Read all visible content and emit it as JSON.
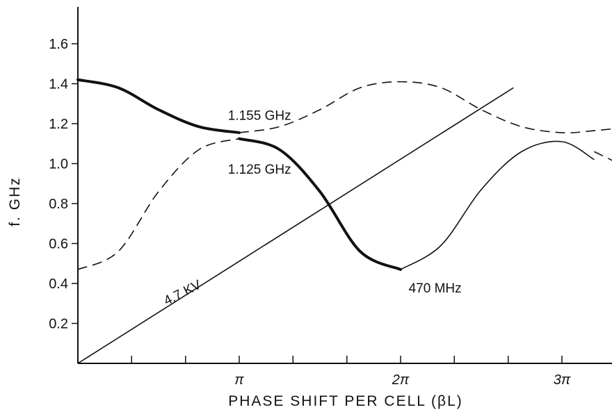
{
  "chart_data": {
    "type": "line",
    "xlabel": "PHASE SHIFT PER CELL (βL)",
    "ylabel": "f. GHz",
    "xlim": [
      0,
      3.5
    ],
    "ylim": [
      0,
      1.75
    ],
    "x_unit": "π",
    "x_tick_values": [
      1,
      2,
      3
    ],
    "x_tick_labels": [
      "π",
      "2π",
      "3π"
    ],
    "x_minor_ticks": [
      0.333,
      0.667,
      1.333,
      1.667,
      2.333,
      2.667
    ],
    "y_ticks": [
      0.2,
      0.4,
      0.6,
      0.8,
      1.0,
      1.2,
      1.4,
      1.6
    ],
    "y_tick_labels": [
      "0.2",
      "0.4",
      "0.6",
      "0.8",
      "1.0",
      "1.2",
      "1.4",
      "1.6"
    ],
    "grid": false,
    "legend": "none",
    "series": [
      {
        "style": "thick-solid",
        "x": [
          0,
          0.25,
          0.5,
          0.75,
          1.0
        ],
        "y": [
          1.42,
          1.38,
          1.27,
          1.185,
          1.155
        ]
      },
      {
        "style": "thick-solid",
        "x": [
          1.0,
          1.25,
          1.5,
          1.75,
          2.0
        ],
        "y": [
          1.125,
          1.07,
          0.86,
          0.56,
          0.47
        ]
      },
      {
        "style": "thin-solid",
        "x": [
          2.0,
          2.25,
          2.5,
          2.75,
          3.0,
          3.2
        ],
        "y": [
          0.47,
          0.59,
          0.87,
          1.06,
          1.11,
          1.02
        ]
      },
      {
        "style": "thin-solid",
        "x": [
          0,
          2.7
        ],
        "y": [
          0,
          1.38
        ]
      },
      {
        "style": "dashed",
        "x": [
          1.0,
          1.25,
          1.5,
          1.75,
          2.0,
          2.25,
          2.5,
          2.75,
          3.0,
          3.2,
          3.5
        ],
        "y": [
          1.155,
          1.185,
          1.27,
          1.38,
          1.41,
          1.38,
          1.27,
          1.185,
          1.155,
          1.165,
          1.19
        ]
      },
      {
        "style": "dashed",
        "x": [
          0,
          0.25,
          0.5,
          0.75,
          1.0
        ],
        "y": [
          0.47,
          0.56,
          0.86,
          1.07,
          1.125
        ]
      },
      {
        "style": "dashed",
        "x": [
          3.2,
          3.35,
          3.5
        ],
        "y": [
          1.06,
          1.0,
          0.93
        ]
      }
    ],
    "annotations": [
      {
        "text": "1.155 GHz",
        "x": 0.93,
        "y": 1.22,
        "angle": 0
      },
      {
        "text": "1.125 GHz",
        "x": 0.93,
        "y": 0.95,
        "angle": 0
      },
      {
        "text": "470 MHz",
        "x": 2.05,
        "y": 0.355,
        "angle": 0
      },
      {
        "text": "4.7 KV",
        "x": 0.55,
        "y": 0.29,
        "angle": -27
      }
    ]
  }
}
